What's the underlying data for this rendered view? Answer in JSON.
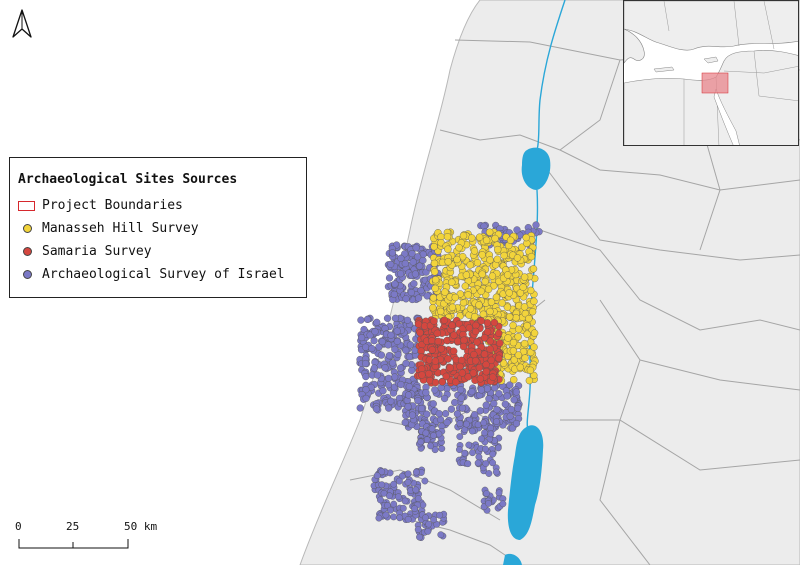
{
  "legend": {
    "title": "Archaeological Sites Sources",
    "items": [
      {
        "label": "Project Boundaries",
        "symbol": "box",
        "color": "#d6282d"
      },
      {
        "label": "Manasseh Hill Survey",
        "symbol": "dot",
        "color": "#f2d43b"
      },
      {
        "label": "Samaria Survey",
        "symbol": "dot",
        "color": "#d4473f"
      },
      {
        "label": "Archaeological Survey of Israel",
        "symbol": "dot",
        "color": "#7b79c6"
      }
    ]
  },
  "scale_bar": {
    "ticks": [
      "0",
      "25",
      "50 km"
    ]
  },
  "north_arrow": {
    "icon": "north-arrow-icon"
  },
  "colors": {
    "land": "#ececec",
    "sea": "#ffffff",
    "water": "#2aa7d8",
    "borders": "#9a9a9a",
    "highlight": "#e8868c"
  }
}
